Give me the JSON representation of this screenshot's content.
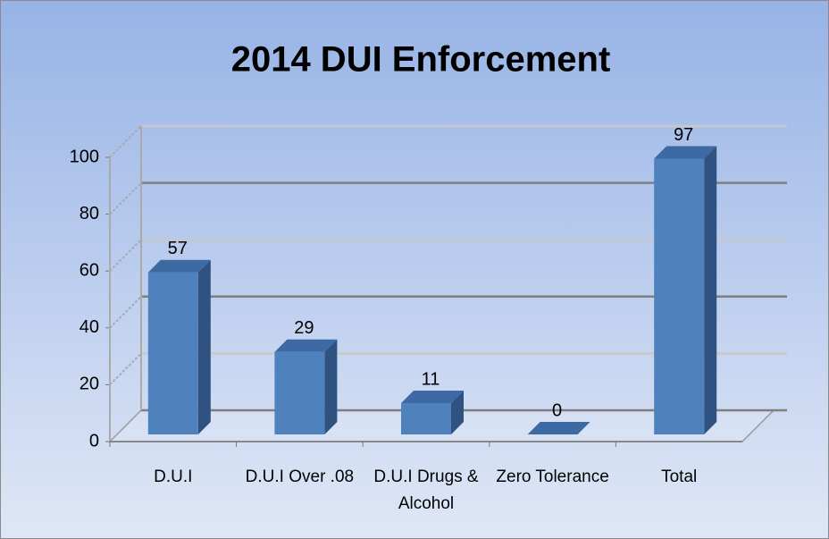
{
  "chart_data": {
    "type": "bar3d",
    "title": "2014 DUI Enforcement",
    "categories": [
      "D.U.I",
      "D.U.I Over .08",
      "D.U.I Drugs & Alcohol",
      "Zero Tolerance",
      "Total"
    ],
    "values": [
      57,
      29,
      11,
      0,
      97
    ],
    "color": "#4f81bd",
    "ylim": [
      0,
      100
    ],
    "yticks": [
      0,
      20,
      40,
      60,
      80,
      100
    ],
    "grid": true
  }
}
